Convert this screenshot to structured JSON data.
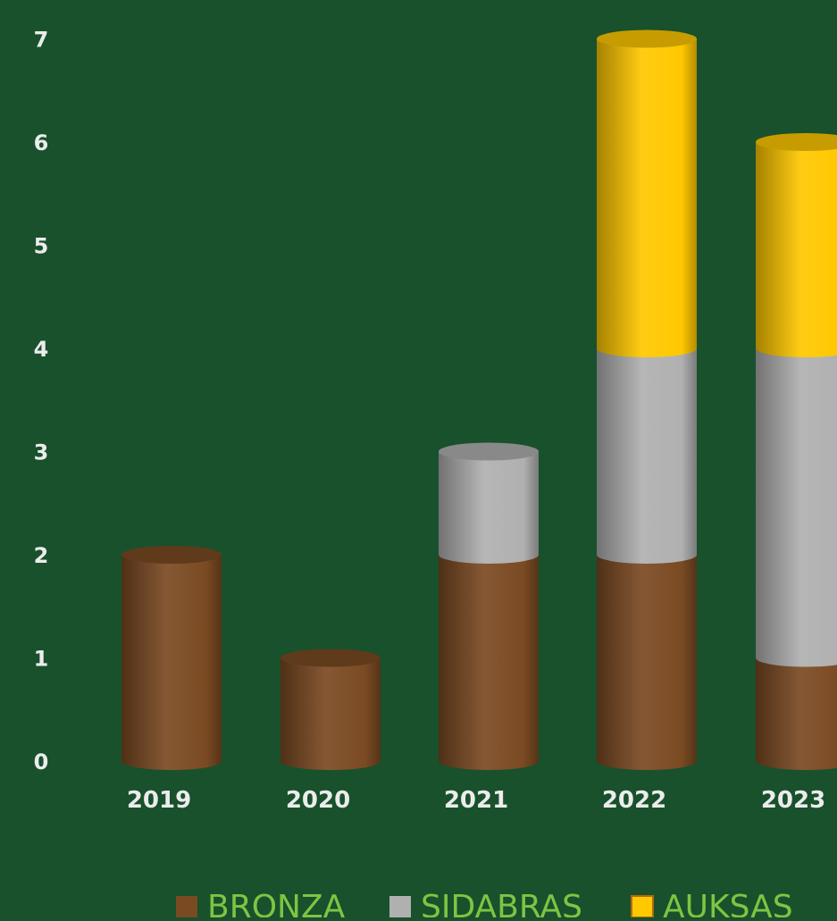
{
  "colors": {
    "background": "#18512c",
    "tick_text": "#ececec",
    "legend_text": "#7fc443"
  },
  "chart_data": {
    "type": "bar",
    "stacked": true,
    "style": "3d-cylinder",
    "categories": [
      "2019",
      "2020",
      "2021",
      "2022",
      "2023"
    ],
    "series": [
      {
        "name": "BRONZA",
        "color": "#7a4a22",
        "values": [
          2,
          1,
          2,
          2,
          1
        ]
      },
      {
        "name": "SIDABRAS",
        "color": "#b0b0b0",
        "values": [
          0,
          0,
          1,
          2,
          3
        ]
      },
      {
        "name": "AUKSAS",
        "color": "#ffc800",
        "values": [
          0,
          0,
          0,
          3,
          2
        ]
      }
    ],
    "ylim": [
      0,
      7
    ],
    "yticks": [
      "0",
      "1",
      "2",
      "3",
      "4",
      "5",
      "6",
      "7"
    ],
    "grid": false,
    "legend_position": "bottom"
  }
}
